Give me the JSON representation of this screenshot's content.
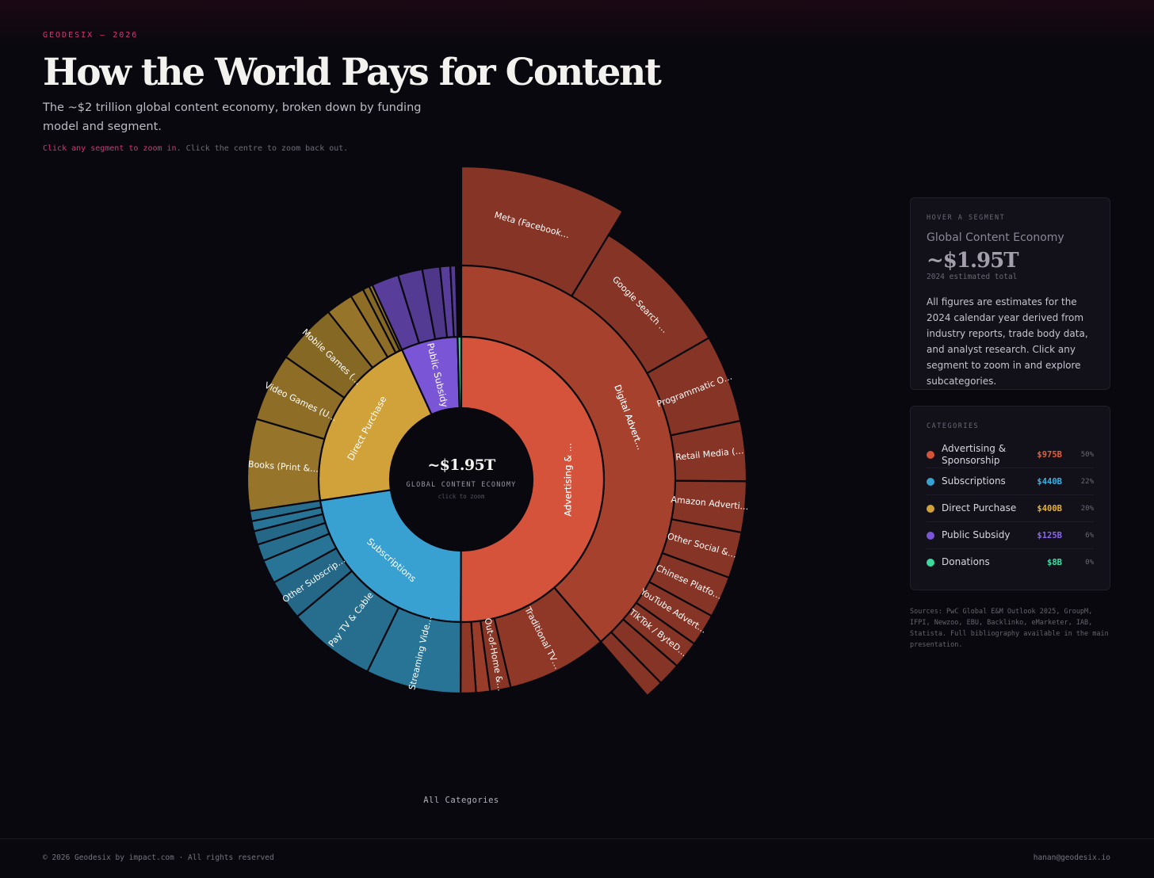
{
  "header": {
    "eyebrow": "GEODESIX — 2026",
    "title": "How the World Pays for Content",
    "subtitle": "The ~$2 trillion global content economy, broken down by funding model and segment.",
    "hint_highlight": "Click any segment to zoom in.",
    "hint_rest": " Click the centre to zoom back out."
  },
  "center": {
    "value": "~$1.95T",
    "label": "GLOBAL CONTENT ECONOMY",
    "sub": "click to zoom"
  },
  "breadcrumb": "All Categories",
  "hover_panel": {
    "heading": "HOVER A SEGMENT",
    "name": "Global Content Economy",
    "value": "~$1.95T",
    "year": "2024 estimated total",
    "description": "All figures are estimates for the 2024 calendar year derived from industry reports, trade body data, and analyst research. Click any segment to zoom in and explore subcategories."
  },
  "categories_panel": {
    "heading": "CATEGORIES",
    "items": [
      {
        "name": "Advertising & Sponsorship",
        "value": "$975B",
        "pct": "50%",
        "color": "#d4533a"
      },
      {
        "name": "Subscriptions",
        "value": "$440B",
        "pct": "22%",
        "color": "#38a1d1"
      },
      {
        "name": "Direct Purchase",
        "value": "$400B",
        "pct": "20%",
        "color": "#d1a23a"
      },
      {
        "name": "Public Subsidy",
        "value": "$125B",
        "pct": "6%",
        "color": "#7a56d6"
      },
      {
        "name": "Donations",
        "value": "$8B",
        "pct": "0%",
        "color": "#3ad9a0"
      }
    ]
  },
  "sources": "Sources: PwC Global E&M Outlook 2025, GroupM, IFPI, Newzoo, EBU, Backlinko, eMarketer, IAB, Statista. Full bibliography available in the main presentation.",
  "footer": {
    "left": "© 2026 Geodesix by impact.com · All rights reserved",
    "right": "hanan@geodesix.io"
  },
  "chart_data": {
    "type": "sunburst",
    "unit": "$B",
    "total": 1948,
    "children": [
      {
        "label": "Advertising & …",
        "value": 975,
        "color": "#d4533a",
        "children": [
          {
            "label": "Digital Advert…",
            "value": 740,
            "children": [
              {
                "label": "Meta (Facebook…",
                "value": 165
              },
              {
                "label": "Google Search …",
                "value": 155
              },
              {
                "label": "Programmatic O…",
                "value": 95
              },
              {
                "label": "Retail Media (…",
                "value": 65
              },
              {
                "label": "Amazon Adverti…",
                "value": 55
              },
              {
                "label": "Other Social &…",
                "value": 50
              },
              {
                "label": "Chinese Platfo…",
                "value": 45
              },
              {
                "label": "YouTube Advert…",
                "value": 35
              },
              {
                "label": "TikTok / ByteD…",
                "value": 30
              },
              {
                "label": "",
                "value": 25
              },
              {
                "label": "",
                "value": 20
              }
            ]
          },
          {
            "label": "Traditional TV…",
            "value": 145
          },
          {
            "label": "Out-of-Home &…",
            "value": 30
          },
          {
            "label": "",
            "value": 20
          },
          {
            "label": "",
            "value": 22
          }
        ]
      },
      {
        "label": "Subscriptions",
        "value": 440,
        "color": "#38a1d1",
        "children": [
          {
            "label": "Streaming Vide…",
            "value": 140
          },
          {
            "label": "Pay TV & Cable",
            "value": 130
          },
          {
            "label": "Other Subscrip…",
            "value": 60
          },
          {
            "label": "",
            "value": 35
          },
          {
            "label": "",
            "value": 25
          },
          {
            "label": "",
            "value": 20
          },
          {
            "label": "",
            "value": 15
          },
          {
            "label": "",
            "value": 15
          }
        ]
      },
      {
        "label": "Direct Purchase",
        "value": 400,
        "color": "#d1a23a",
        "children": [
          {
            "label": "Books (Print &…",
            "value": 135
          },
          {
            "label": "Video Games (U…",
            "value": 100
          },
          {
            "label": "Mobile Games (…",
            "value": 90
          },
          {
            "label": "",
            "value": 40
          },
          {
            "label": "",
            "value": 20
          },
          {
            "label": "",
            "value": 10
          },
          {
            "label": "",
            "value": 5
          }
        ]
      },
      {
        "label": "Public Subsidy",
        "value": 125,
        "color": "#7a56d6",
        "children": [
          {
            "label": "",
            "value": 40
          },
          {
            "label": "",
            "value": 36
          },
          {
            "label": "",
            "value": 26
          },
          {
            "label": "",
            "value": 15
          },
          {
            "label": "",
            "value": 8
          }
        ]
      },
      {
        "label": "",
        "value": 8,
        "color": "#3ad9a0",
        "children": []
      }
    ]
  }
}
